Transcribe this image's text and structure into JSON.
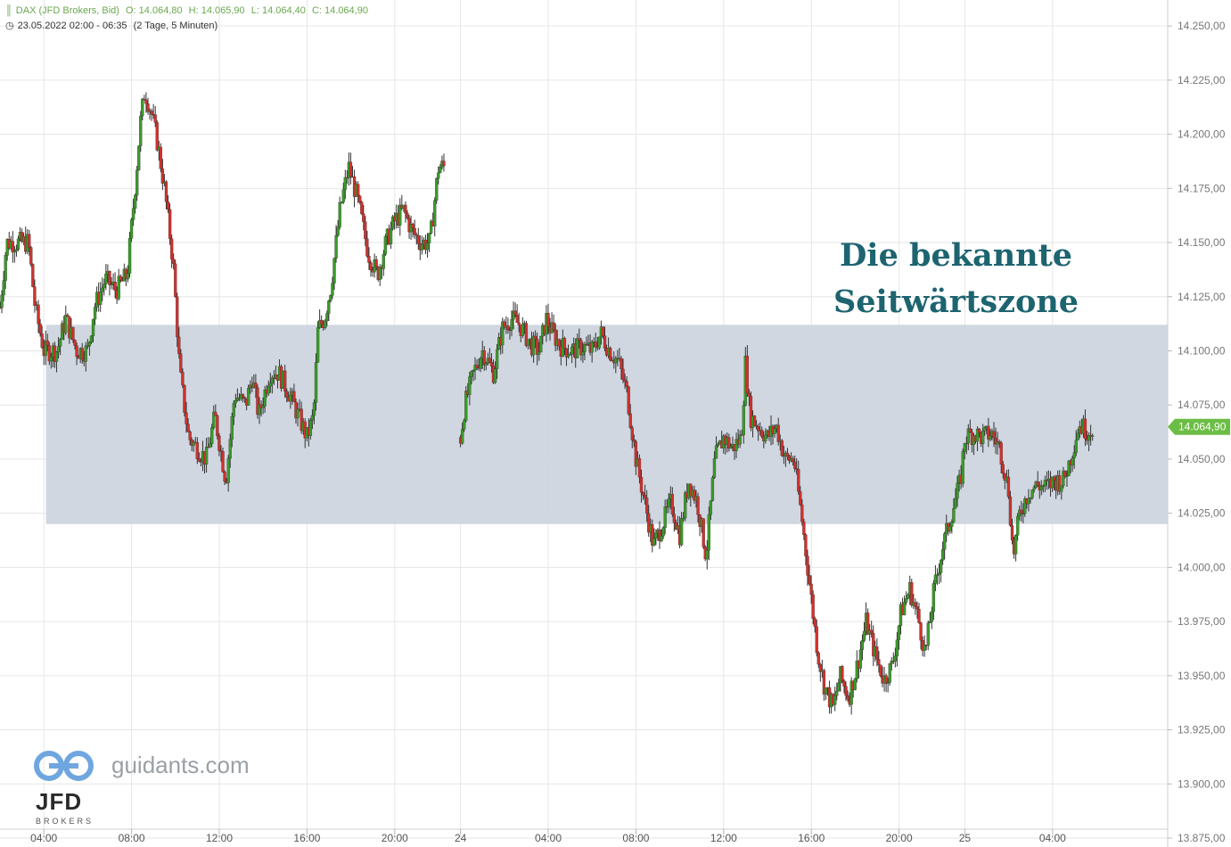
{
  "header": {
    "instrument_label": "DAX (JFD Brokers, Bid)",
    "ohlc": {
      "open": "O: 14.064,80",
      "high": "H: 14.065,90",
      "low": "L: 14.064,40",
      "close": "C: 14.064,90"
    },
    "period": "23.05.2022 02:00 - 06:35",
    "interval": "(2 Tage, 5 Minuten)"
  },
  "annotation": {
    "line1": "Die bekannte",
    "line2": "Seitwärtszone"
  },
  "branding": {
    "site": "guidants.com",
    "broker": "JFD",
    "broker_sub": "BROKERS"
  },
  "colors": {
    "up": "#3a9a28",
    "down": "#d0312d",
    "zone": "#cdd5de",
    "price_tag": "#6cbd45",
    "annotation": "#1d6470",
    "grid": "#e6e6e6"
  },
  "chart_data": {
    "type": "candlestick",
    "y_range": [
      13875,
      14262
    ],
    "y_ticks": [
      14250,
      14225,
      14200,
      14175,
      14150,
      14125,
      14100,
      14075,
      14050,
      14025,
      14000,
      13975,
      13950,
      13925,
      13900,
      13875
    ],
    "y_tick_labels": [
      "14.250,00",
      "14.225,00",
      "14.200,00",
      "14.175,00",
      "14.150,00",
      "14.125,00",
      "14.100,00",
      "14.075,00",
      "14.050,00",
      "14.025,00",
      "14.000,00",
      "13.975,00",
      "13.950,00",
      "13.925,00",
      "13.900,00",
      "13.875,00"
    ],
    "x_range_hours": [
      2,
      55.25
    ],
    "x_ticks": [
      {
        "h": 4,
        "label": "04:00"
      },
      {
        "h": 8,
        "label": "08:00"
      },
      {
        "h": 12,
        "label": "12:00"
      },
      {
        "h": 16,
        "label": "16:00"
      },
      {
        "h": 20,
        "label": "20:00"
      },
      {
        "h": 23,
        "label": "24"
      },
      {
        "h": 27,
        "label": "04:00"
      },
      {
        "h": 31,
        "label": "08:00"
      },
      {
        "h": 35,
        "label": "12:00"
      },
      {
        "h": 39,
        "label": "16:00"
      },
      {
        "h": 43,
        "label": "20:00"
      },
      {
        "h": 46,
        "label": "25"
      },
      {
        "h": 50,
        "label": "04:00"
      }
    ],
    "last_price": 14064.9,
    "last_price_label": "14.064,90",
    "zone": {
      "from": 14020,
      "to": 14112,
      "start_h": 4.1
    },
    "sessions": [
      {
        "start_h": 2.0,
        "step_h": 0.0833,
        "anchors": [
          [
            2.0,
            14120
          ],
          [
            2.3,
            14150
          ],
          [
            3.3,
            14150
          ],
          [
            3.6,
            14120
          ],
          [
            4.0,
            14100
          ],
          [
            4.6,
            14100
          ],
          [
            5.0,
            14115
          ],
          [
            5.5,
            14100
          ],
          [
            6.0,
            14100
          ],
          [
            6.3,
            14120
          ],
          [
            6.8,
            14133
          ],
          [
            7.3,
            14128
          ],
          [
            7.8,
            14135
          ],
          [
            8.2,
            14180
          ],
          [
            8.4,
            14205
          ],
          [
            8.6,
            14220
          ],
          [
            8.9,
            14210
          ],
          [
            9.2,
            14195
          ],
          [
            9.5,
            14175
          ],
          [
            9.9,
            14140
          ],
          [
            10.2,
            14090
          ],
          [
            10.6,
            14060
          ],
          [
            11.0,
            14055
          ],
          [
            11.4,
            14050
          ],
          [
            11.8,
            14070
          ],
          [
            12.3,
            14040
          ],
          [
            12.7,
            14080
          ],
          [
            13.2,
            14075
          ],
          [
            13.5,
            14088
          ],
          [
            13.8,
            14070
          ],
          [
            14.3,
            14090
          ],
          [
            14.7,
            14090
          ],
          [
            15.2,
            14080
          ],
          [
            15.6,
            14070
          ],
          [
            16.0,
            14060
          ],
          [
            16.3,
            14070
          ],
          [
            16.5,
            14110
          ],
          [
            16.8,
            14115
          ],
          [
            17.1,
            14130
          ],
          [
            17.5,
            14165
          ],
          [
            17.9,
            14185
          ],
          [
            18.3,
            14170
          ],
          [
            18.8,
            14145
          ],
          [
            19.2,
            14135
          ],
          [
            19.6,
            14150
          ],
          [
            20.0,
            14160
          ],
          [
            20.4,
            14165
          ],
          [
            20.8,
            14155
          ],
          [
            21.2,
            14150
          ],
          [
            21.6,
            14150
          ],
          [
            22.0,
            14185
          ],
          [
            22.3,
            14185
          ]
        ]
      },
      {
        "start_h": 23.0,
        "step_h": 0.0833,
        "anchors": [
          [
            23.0,
            14060
          ],
          [
            23.2,
            14075
          ],
          [
            23.6,
            14090
          ],
          [
            24.0,
            14100
          ],
          [
            24.5,
            14090
          ],
          [
            24.9,
            14110
          ],
          [
            25.3,
            14115
          ],
          [
            25.7,
            14112
          ],
          [
            26.2,
            14103
          ],
          [
            26.6,
            14100
          ],
          [
            26.9,
            14115
          ],
          [
            27.2,
            14108
          ],
          [
            27.6,
            14102
          ],
          [
            28.1,
            14100
          ],
          [
            28.6,
            14102
          ],
          [
            29.0,
            14100
          ],
          [
            29.4,
            14108
          ],
          [
            29.8,
            14100
          ],
          [
            30.2,
            14095
          ],
          [
            30.6,
            14080
          ],
          [
            31.0,
            14050
          ],
          [
            31.4,
            14030
          ],
          [
            31.8,
            14010
          ],
          [
            32.2,
            14020
          ],
          [
            32.6,
            14030
          ],
          [
            33.0,
            14015
          ],
          [
            33.4,
            14040
          ],
          [
            33.8,
            14030
          ],
          [
            34.2,
            14005
          ],
          [
            34.6,
            14050
          ],
          [
            35.0,
            14060
          ],
          [
            35.4,
            14055
          ],
          [
            35.8,
            14060
          ],
          [
            36.0,
            14095
          ],
          [
            36.2,
            14070
          ],
          [
            36.6,
            14065
          ],
          [
            37.0,
            14060
          ],
          [
            37.4,
            14065
          ],
          [
            37.8,
            14050
          ],
          [
            38.2,
            14050
          ],
          [
            38.6,
            14020
          ],
          [
            39.0,
            13985
          ],
          [
            39.3,
            13960
          ],
          [
            39.6,
            13945
          ],
          [
            40.0,
            13935
          ],
          [
            40.3,
            13950
          ],
          [
            40.7,
            13940
          ],
          [
            41.1,
            13955
          ],
          [
            41.5,
            13975
          ],
          [
            41.9,
            13960
          ],
          [
            42.3,
            13948
          ],
          [
            42.7,
            13955
          ],
          [
            43.1,
            13980
          ],
          [
            43.5,
            13990
          ],
          [
            43.9,
            13975
          ],
          [
            44.2,
            13960
          ],
          [
            44.6,
            13990
          ],
          [
            45.0,
            14010
          ],
          [
            45.4,
            14025
          ],
          [
            45.8,
            14040
          ],
          [
            46.0,
            14060
          ],
          [
            46.4,
            14062
          ],
          [
            46.8,
            14060
          ],
          [
            47.2,
            14062
          ],
          [
            47.6,
            14055
          ],
          [
            48.0,
            14035
          ],
          [
            48.2,
            14005
          ],
          [
            48.5,
            14025
          ],
          [
            48.9,
            14035
          ],
          [
            49.3,
            14038
          ],
          [
            49.7,
            14037
          ],
          [
            50.1,
            14040
          ],
          [
            50.5,
            14040
          ],
          [
            50.8,
            14050
          ],
          [
            51.2,
            14066
          ],
          [
            51.6,
            14063
          ],
          [
            51.9,
            14065
          ]
        ]
      }
    ]
  }
}
